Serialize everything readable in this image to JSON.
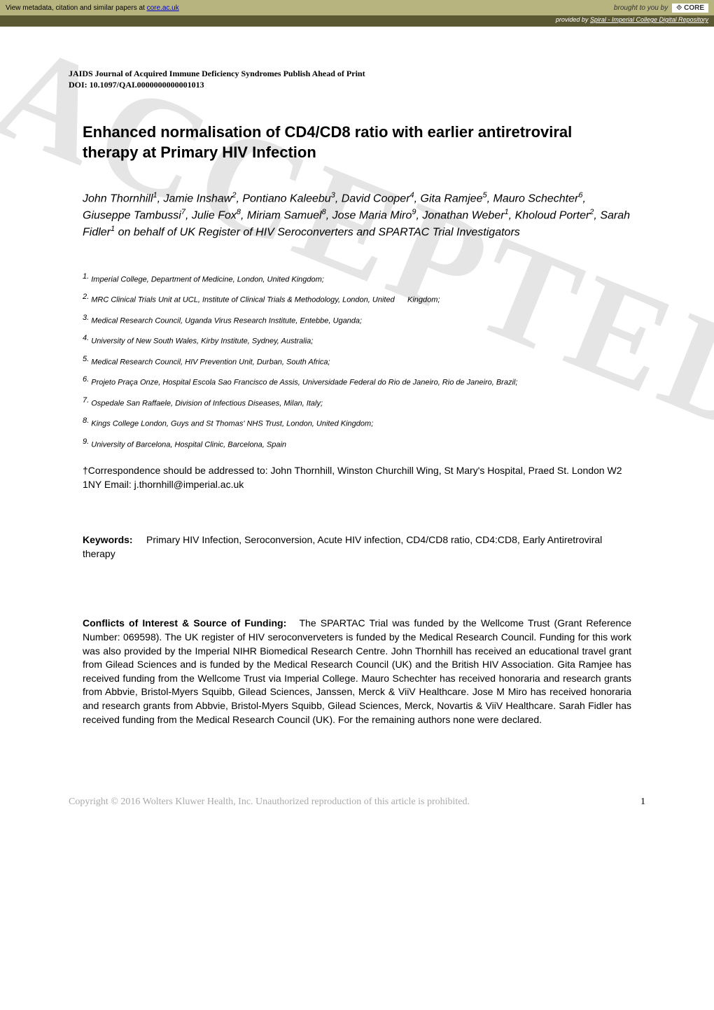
{
  "topbar": {
    "metadata_text": "View metadata, citation and similar papers at ",
    "metadata_link": "core.ac.uk",
    "brought_by": "brought to you by",
    "core_label": "CORE",
    "provided_by_prefix": "provided by ",
    "provided_by_link": "Spiral - Imperial College Digital Repository"
  },
  "journal": {
    "name": "JAIDS Journal of Acquired Immune Deficiency Syndromes Publish Ahead of Print",
    "doi": "DOI: 10.1097/QAI.0000000000001013"
  },
  "title": "Enhanced normalisation of CD4/CD8 ratio with earlier antiretroviral therapy at Primary HIV Infection",
  "authors_html": "John Thornhill<span class='sup'>1</span>, Jamie Inshaw<span class='sup'>2</span>, Pontiano Kaleebu<span class='sup'>3</span>, David Cooper<span class='sup'>4</span>, Gita Ramjee<span class='sup'>5</span>, Mauro Schechter<span class='sup'>6</span>, Giuseppe Tambussi<span class='sup'>7</span>, Julie Fox<span class='sup'>8</span>, Miriam Samuel<span class='sup'>8</span>, Jose Maria Miro<span class='sup'>9</span>, Jonathan Weber<span class='sup'>1</span>, Kholoud Porter<span class='sup'>2</span>, Sarah Fidler<span class='sup'>1</span> on behalf of UK Register of HIV Seroconverters and SPARTAC Trial Investigators",
  "affiliations": [
    {
      "num": "1.",
      "text": "Imperial College, Department of Medicine, London, United Kingdom;"
    },
    {
      "num": "2.",
      "text": "MRC Clinical Trials Unit at UCL, Institute of Clinical Trials & Methodology, London, United      Kingdom;"
    },
    {
      "num": "3.",
      "text": "Medical Research Council, Uganda Virus Research Institute, Entebbe, Uganda;"
    },
    {
      "num": "4.",
      "text": "University of New South Wales, Kirby Institute, Sydney, Australia;"
    },
    {
      "num": "5.",
      "text": "Medical Research Council, HIV Prevention Unit, Durban, South Africa;"
    },
    {
      "num": "6.",
      "text": "Projeto Praça Onze, Hospital Escola Sao Francisco de Assis, Universidade Federal do Rio de Janeiro, Rio de Janeiro, Brazil;"
    },
    {
      "num": "7.",
      "text": "Ospedale San Raffaele, Division of Infectious Diseases, Milan, Italy;"
    },
    {
      "num": "8.",
      "text": "Kings College London, Guys and St Thomas' NHS Trust, London, United Kingdom;"
    },
    {
      "num": "9.",
      "text": "University of Barcelona, Hospital Clinic, Barcelona, Spain"
    }
  ],
  "correspondence": "†Correspondence should be addressed to:  John Thornhill, Winston Churchill Wing, St Mary's Hospital, Praed St. London W2 1NY Email: j.thornhill@imperial.ac.uk",
  "keywords_label": "Keywords:",
  "keywords_text": "Primary HIV Infection, Seroconversion, Acute HIV infection, CD4/CD8 ratio, CD4:CD8, Early Antiretroviral therapy",
  "conflicts_label": "Conflicts of Interest & Source of Funding:",
  "conflicts_text": "The SPARTAC Trial was funded by the Wellcome Trust (Grant Reference Number: 069598). The UK register of HIV seroconverveters is funded by the Medical Research Council. Funding for this work was also provided by the Imperial NIHR Biomedical Research Centre.  John Thornhill has received an educational travel grant from Gilead Sciences and is funded by the Medical Research Council (UK) and the British HIV Association. Gita Ramjee has received funding from the Wellcome Trust via Imperial College. Mauro Schechter has received honoraria and research grants from Abbvie, Bristol-Myers Squibb, Gilead Sciences, Janssen, Merck & ViiV Healthcare. Jose M Miro has received honoraria and research grants from Abbvie, Bristol-Myers Squibb, Gilead Sciences, Merck, Novartis & ViiV Healthcare.  Sarah Fidler has received funding from the Medical Research Council (UK).  For the remaining authors none were declared.",
  "watermark": "ACCEPTED",
  "footer": {
    "copyright": "Copyright © 2016 Wolters Kluwer Health, Inc. Unauthorized reproduction of this article is prohibited.",
    "page": "1"
  },
  "colors": {
    "topbar_bg": "#b7b480",
    "provided_bg": "#5b5834",
    "link": "#0000cd",
    "footer_gray": "#aaaaaa",
    "watermark": "rgba(0,0,0,0.10)"
  }
}
